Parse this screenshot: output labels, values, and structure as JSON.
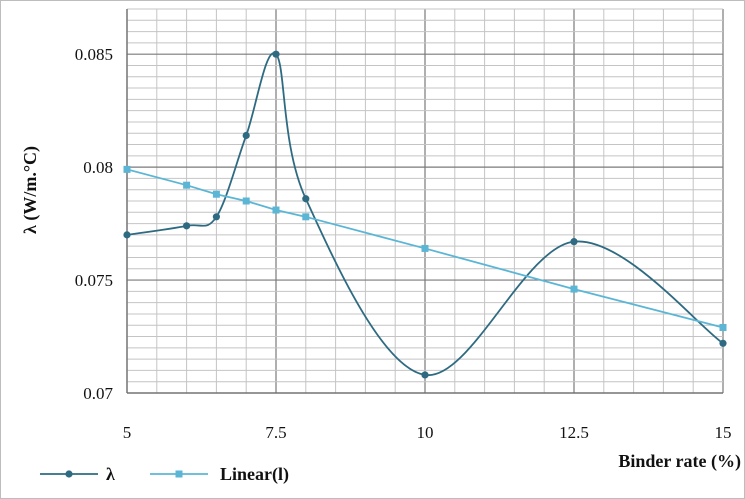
{
  "chart_data": {
    "type": "line",
    "xlabel": "Binder rate (%)",
    "ylabel": "λ (W/m.°C)",
    "xlim": [
      5,
      15
    ],
    "ylim": [
      0.07,
      0.087
    ],
    "x_ticks": [
      5,
      7.5,
      10,
      12.5,
      15
    ],
    "x_tick_labels": [
      "5",
      "7.5",
      "10",
      "12.5",
      "15"
    ],
    "y_ticks": [
      0.07,
      0.075,
      0.08,
      0.085
    ],
    "y_tick_labels": [
      "0.07",
      "0.075",
      "0.08",
      "0.085"
    ],
    "grid": true,
    "legend_position": "bottom-left",
    "series": [
      {
        "name": "λ",
        "color": "#2e6b82",
        "smooth": true,
        "x": [
          5,
          6,
          6.5,
          7,
          7.5,
          8,
          10,
          12.5,
          15
        ],
        "y": [
          0.077,
          0.0774,
          0.0778,
          0.0814,
          0.085,
          0.0786,
          0.0708,
          0.0767,
          0.0722
        ]
      },
      {
        "name": "Linear(l)",
        "color": "#5bb6d6",
        "smooth": false,
        "x": [
          5,
          6,
          6.5,
          7,
          7.5,
          8,
          10,
          12.5,
          15
        ],
        "y": [
          0.0799,
          0.0792,
          0.0788,
          0.0785,
          0.0781,
          0.0778,
          0.0764,
          0.0746,
          0.0729
        ]
      }
    ]
  }
}
